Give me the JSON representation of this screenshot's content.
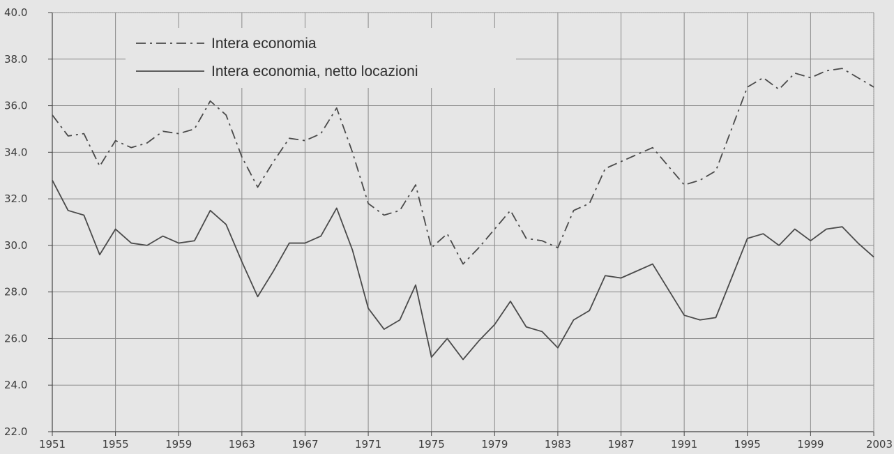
{
  "chart_data": {
    "type": "line",
    "title": "",
    "xlabel": "",
    "ylabel": "",
    "xlim": [
      1951,
      2003
    ],
    "ylim": [
      22.0,
      40.0
    ],
    "grid": true,
    "legend_position": "top-left",
    "x_ticks": [
      "1951",
      "1955",
      "1959",
      "1963",
      "1967",
      "1971",
      "1975",
      "1979",
      "1983",
      "1987",
      "1991",
      "1995",
      "1999",
      "2003"
    ],
    "y_ticks": [
      "22.0",
      "24.0",
      "26.0",
      "28.0",
      "30.0",
      "32.0",
      "34.0",
      "36.0",
      "38.0",
      "40.0"
    ],
    "x": [
      1951,
      1952,
      1953,
      1954,
      1955,
      1956,
      1957,
      1958,
      1959,
      1960,
      1961,
      1962,
      1963,
      1964,
      1965,
      1966,
      1967,
      1968,
      1969,
      1970,
      1971,
      1972,
      1973,
      1974,
      1975,
      1976,
      1977,
      1978,
      1979,
      1980,
      1981,
      1982,
      1983,
      1984,
      1985,
      1986,
      1987,
      1988,
      1989,
      1990,
      1991,
      1992,
      1993,
      1994,
      1995,
      1996,
      1997,
      1998,
      1999,
      2000,
      2001,
      2002,
      2003
    ],
    "series": [
      {
        "name": "Intera economia",
        "style": "dash-dot",
        "color": "#4a4a4a",
        "values": [
          35.6,
          34.7,
          34.8,
          33.4,
          34.5,
          34.2,
          34.4,
          34.9,
          34.8,
          35.0,
          36.2,
          35.6,
          33.8,
          32.5,
          33.6,
          34.6,
          34.5,
          34.8,
          35.9,
          34.0,
          31.8,
          31.3,
          31.5,
          32.6,
          29.9,
          30.5,
          29.2,
          29.9,
          30.7,
          31.5,
          30.3,
          30.2,
          29.9,
          31.5,
          31.8,
          33.3,
          33.6,
          33.9,
          34.2,
          33.4,
          32.6,
          32.8,
          33.2,
          35.0,
          36.8,
          37.2,
          36.7,
          37.4,
          37.2,
          37.5,
          37.6,
          37.2,
          36.8
        ]
      },
      {
        "name": "Intera economia, netto locazioni",
        "style": "solid",
        "color": "#4a4a4a",
        "values": [
          32.8,
          31.5,
          31.3,
          29.6,
          30.7,
          30.1,
          30.0,
          30.4,
          30.1,
          30.2,
          31.5,
          30.9,
          29.3,
          27.8,
          28.9,
          30.1,
          30.1,
          30.4,
          31.6,
          29.8,
          27.3,
          26.4,
          26.8,
          28.3,
          25.2,
          26.0,
          25.1,
          25.9,
          26.6,
          27.6,
          26.5,
          26.3,
          25.6,
          26.8,
          27.2,
          28.7,
          28.6,
          28.9,
          29.2,
          28.1,
          27.0,
          26.8,
          26.9,
          28.6,
          30.3,
          30.5,
          30.0,
          30.7,
          30.2,
          30.7,
          30.8,
          30.1,
          29.5
        ]
      }
    ],
    "colors": {
      "background": "#e6e6e6",
      "grid": "#8a8a8a",
      "line": "#4a4a4a",
      "text": "#3c3c3c"
    }
  }
}
